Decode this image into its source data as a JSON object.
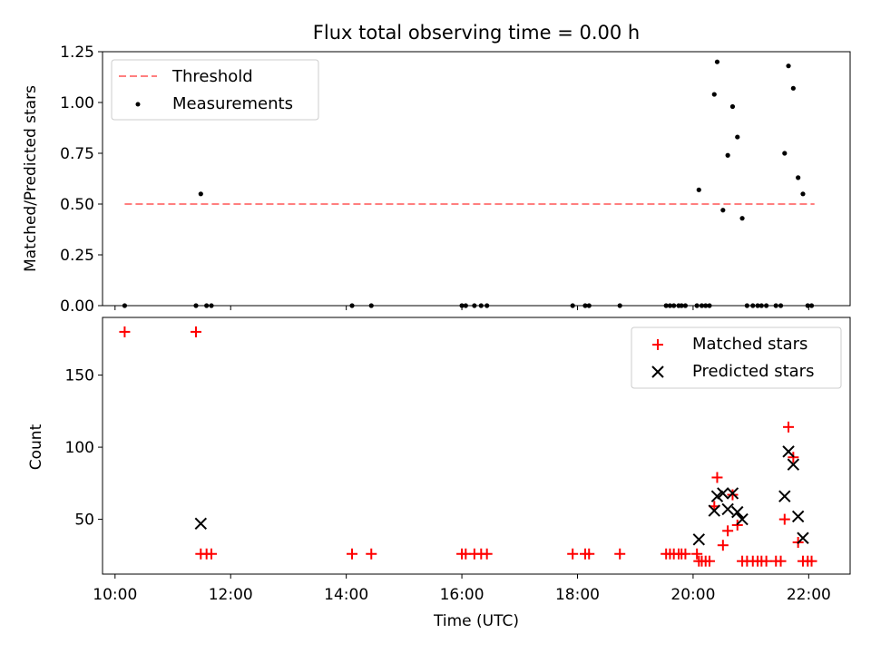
{
  "title": "Flux total observing time = 0.00 h",
  "chart_data": [
    {
      "type": "scatter",
      "ylabel": "Matched/Predicted stars",
      "xlabel": "",
      "ylim": [
        0,
        1.25
      ],
      "yticks": [
        "0.00",
        "0.25",
        "0.50",
        "0.75",
        "1.00",
        "1.25"
      ],
      "ytick_values": [
        0,
        0.25,
        0.5,
        0.75,
        1.0,
        1.25
      ],
      "xlim": [
        "09:47",
        "22:43"
      ],
      "legend": {
        "placement": "upper left",
        "entries": [
          "Threshold",
          "Measurements"
        ]
      },
      "threshold": {
        "name": "Threshold",
        "value": 0.5,
        "x_range": [
          "10:10",
          "22:06"
        ],
        "color": "#ff7f7f",
        "style": "dashed"
      },
      "measurements": {
        "name": "Measurements",
        "color": "#000000",
        "x": [
          "10:10",
          "11:24",
          "11:29",
          "11:35",
          "11:40",
          "14:06",
          "14:26",
          "16:00",
          "16:04",
          "16:13",
          "16:20",
          "16:26",
          "17:55",
          "18:08",
          "18:12",
          "18:44",
          "19:32",
          "19:36",
          "19:40",
          "19:45",
          "19:48",
          "19:52",
          "20:04",
          "20:06",
          "20:09",
          "20:13",
          "20:17",
          "20:22",
          "20:25",
          "20:31",
          "20:36",
          "20:41",
          "20:46",
          "20:51",
          "20:56",
          "21:02",
          "21:07",
          "21:11",
          "21:16",
          "21:26",
          "21:31",
          "21:35",
          "21:39",
          "21:44",
          "21:49",
          "21:54",
          "21:59",
          "22:03"
        ],
        "y": [
          0.0,
          0.0,
          0.55,
          0.0,
          0.0,
          0.0,
          0.0,
          0.0,
          0.0,
          0.0,
          0.0,
          0.0,
          0.0,
          0.0,
          0.0,
          0.0,
          0.0,
          0.0,
          0.0,
          0.0,
          0.0,
          0.0,
          0.0,
          0.57,
          0.0,
          0.0,
          0.0,
          1.04,
          1.2,
          0.47,
          0.74,
          0.98,
          0.83,
          0.43,
          0.0,
          0.0,
          0.0,
          0.0,
          0.0,
          0.0,
          0.0,
          0.75,
          1.18,
          1.07,
          0.63,
          0.55,
          0.0,
          0.0
        ]
      }
    },
    {
      "type": "scatter",
      "ylabel": "Count",
      "xlabel": "Time (UTC)",
      "ylim": [
        12,
        190
      ],
      "yticks": [
        "50",
        "100",
        "150"
      ],
      "ytick_values": [
        50,
        100,
        150
      ],
      "xlim": [
        "09:47",
        "22:43"
      ],
      "xticks": [
        "10:00",
        "12:00",
        "14:00",
        "16:00",
        "18:00",
        "20:00",
        "22:00"
      ],
      "legend": {
        "placement": "upper right",
        "entries": [
          "Matched stars",
          "Predicted stars"
        ]
      },
      "series": [
        {
          "name": "Matched stars",
          "marker": "+",
          "color": "#ff0000",
          "x": [
            "10:10",
            "11:24",
            "11:29",
            "11:35",
            "11:40",
            "14:06",
            "14:26",
            "16:00",
            "16:04",
            "16:13",
            "16:20",
            "16:26",
            "17:55",
            "18:08",
            "18:12",
            "18:44",
            "19:32",
            "19:36",
            "19:40",
            "19:45",
            "19:48",
            "19:52",
            "20:04",
            "20:06",
            "20:09",
            "20:13",
            "20:17",
            "20:22",
            "20:25",
            "20:31",
            "20:36",
            "20:41",
            "20:46",
            "20:51",
            "20:56",
            "21:02",
            "21:07",
            "21:11",
            "21:16",
            "21:26",
            "21:31",
            "21:35",
            "21:39",
            "21:44",
            "21:49",
            "21:54",
            "21:59",
            "22:03"
          ],
          "y": [
            180,
            180,
            26,
            26,
            26,
            26,
            26,
            26,
            26,
            26,
            26,
            26,
            26,
            26,
            26,
            26,
            26,
            26,
            26,
            26,
            26,
            26,
            26,
            21,
            21,
            21,
            21,
            59,
            79,
            32,
            42,
            67,
            46,
            21,
            21,
            21,
            21,
            21,
            21,
            21,
            21,
            50,
            114,
            93,
            34,
            21,
            21,
            21
          ]
        },
        {
          "name": "Predicted stars",
          "marker": "x",
          "color": "#000000",
          "x": [
            "11:29",
            "20:06",
            "20:22",
            "20:25",
            "20:31",
            "20:36",
            "20:41",
            "20:46",
            "20:51",
            "21:35",
            "21:39",
            "21:44",
            "21:49",
            "21:54"
          ],
          "y": [
            47,
            36,
            56,
            66,
            68,
            57,
            68,
            55,
            50,
            66,
            97,
            88,
            52,
            37
          ]
        }
      ]
    }
  ]
}
